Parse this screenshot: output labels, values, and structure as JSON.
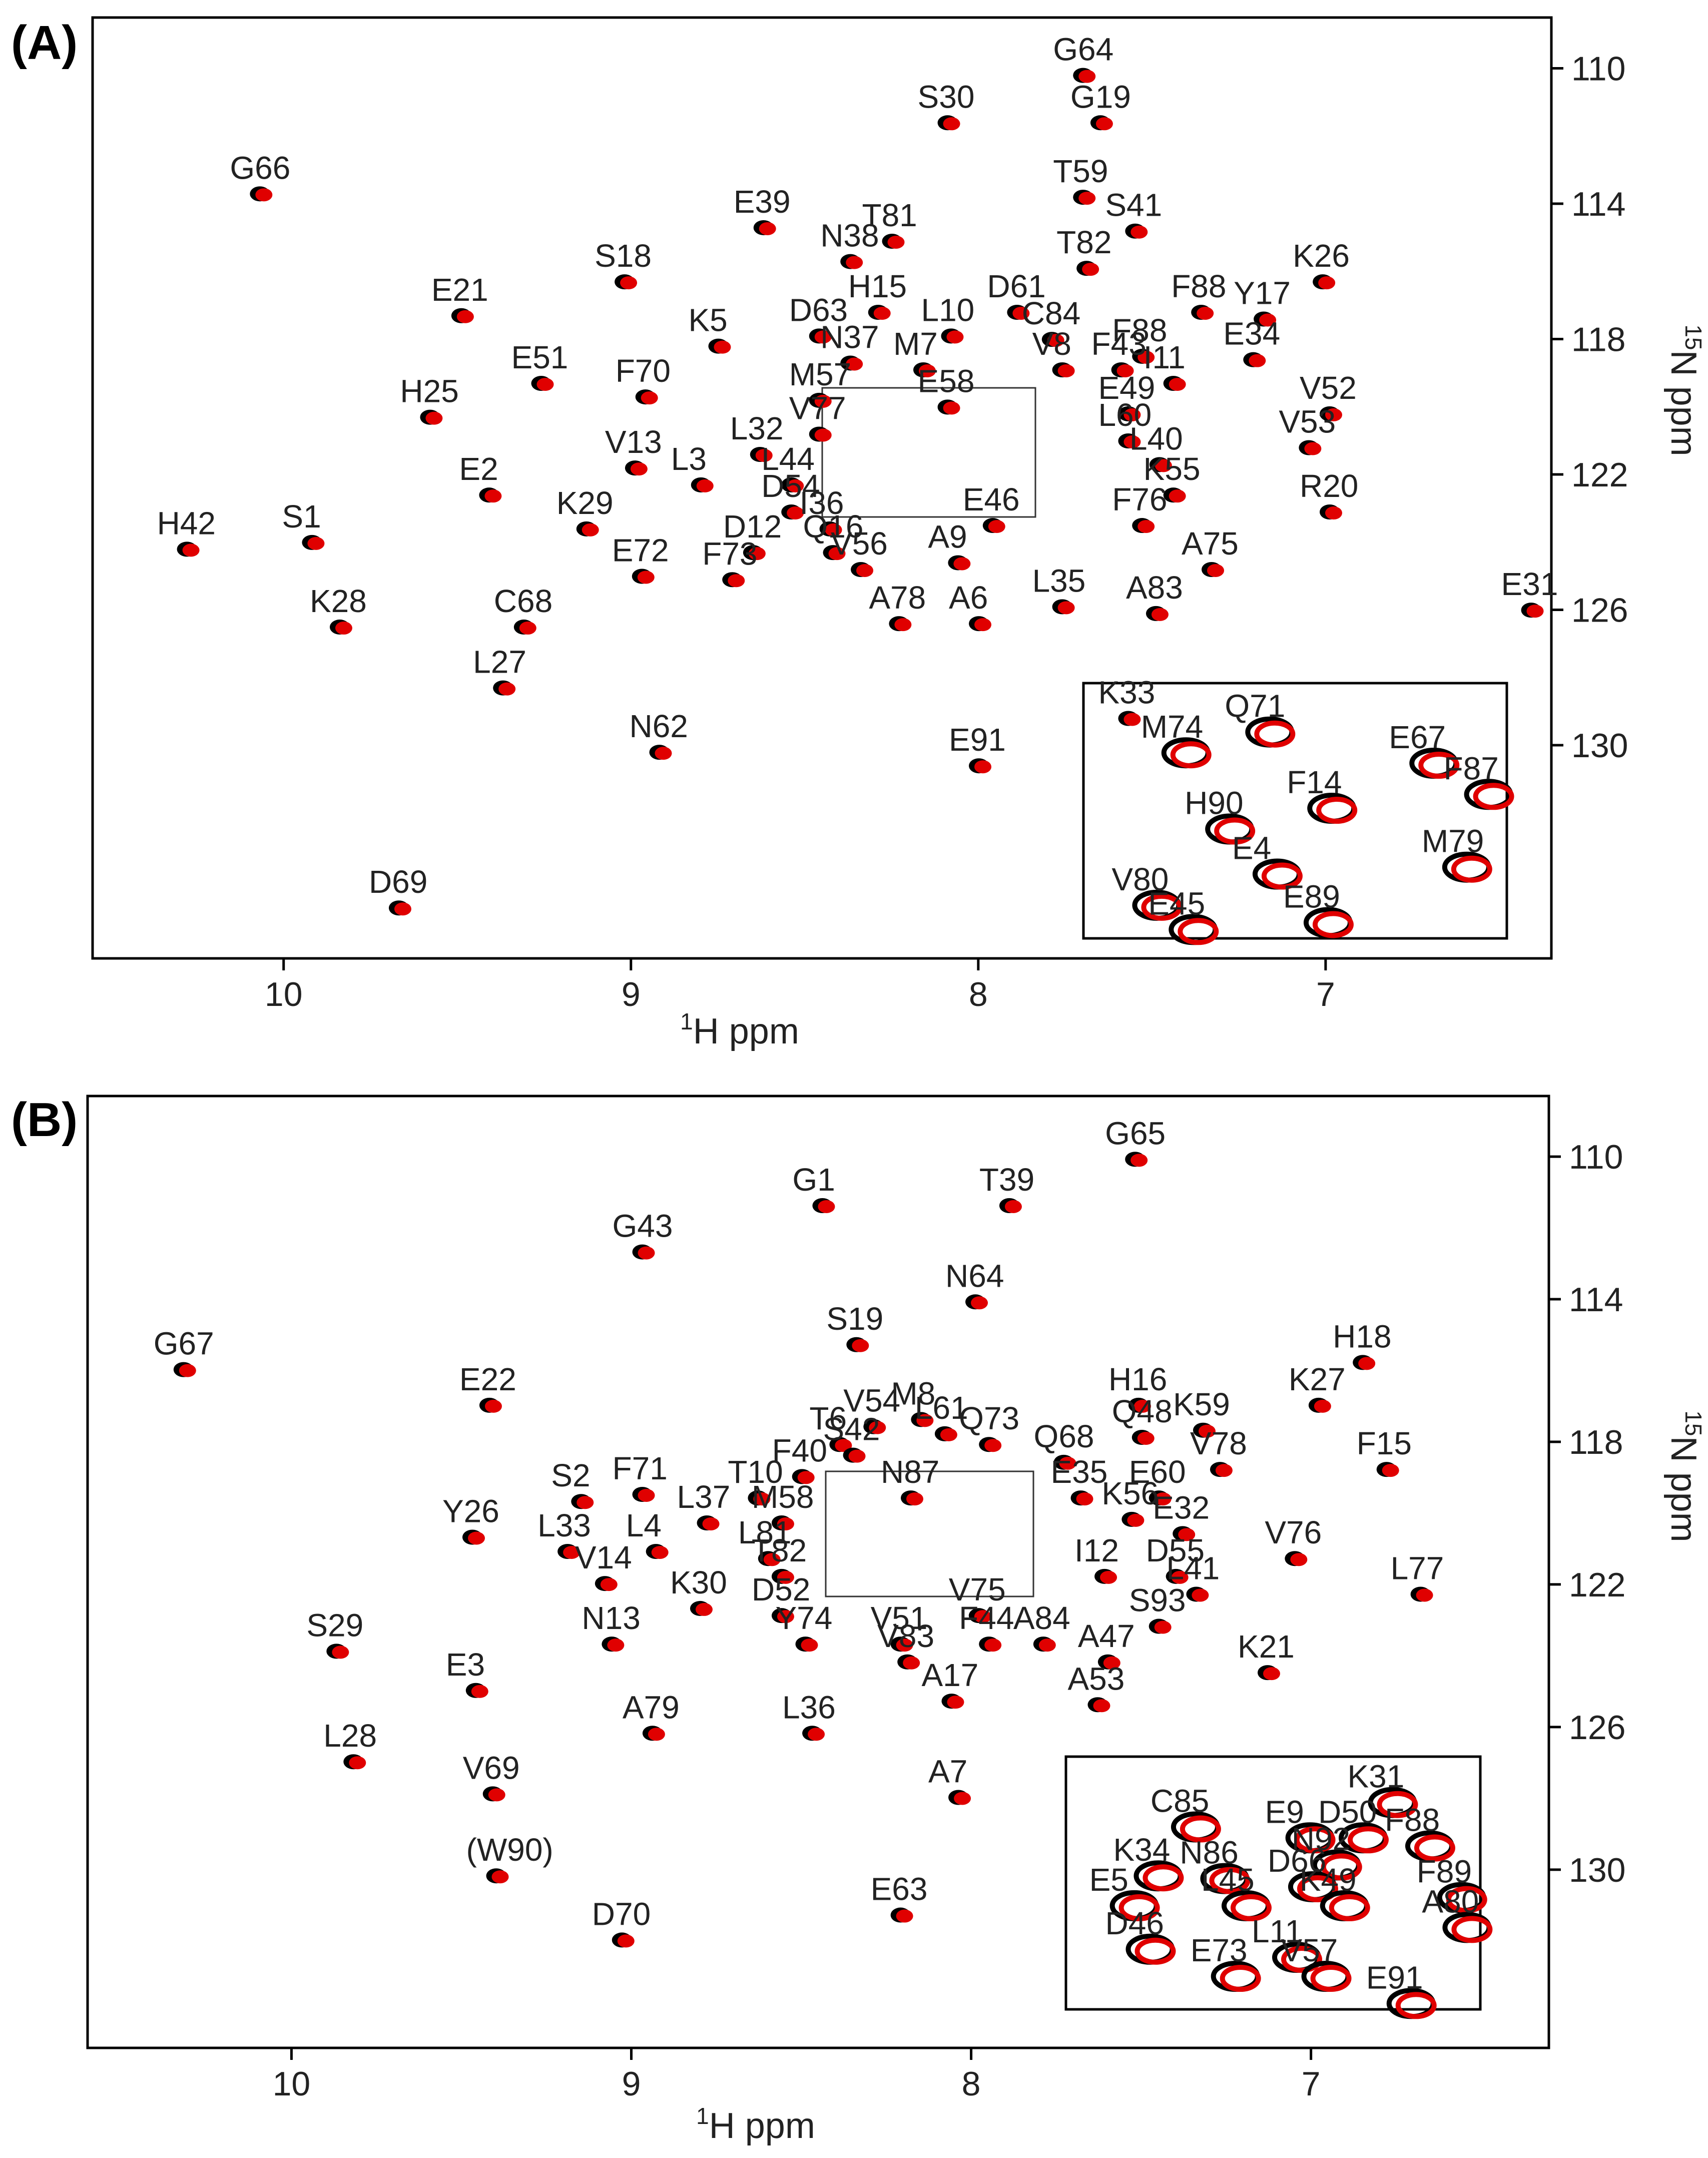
{
  "colors": {
    "peak_black": "#000000",
    "peak_red": "#e00000",
    "axis": "#000000",
    "label": "#222222"
  },
  "chart_data": [
    {
      "type": "scatter",
      "panel_label": "(A)",
      "xlabel_sup": "1",
      "xlabel_rest": "H ppm",
      "ylabel_sup": "15",
      "ylabel_rest": "N ppm",
      "xlim": [
        10.55,
        6.35
      ],
      "ylim": [
        108.5,
        136.3
      ],
      "xticks": [
        10,
        9,
        8,
        7
      ],
      "yticks": [
        110,
        114,
        118,
        122,
        126,
        130
      ],
      "labels": [
        {
          "text": "G64",
          "x": 7.73,
          "y": 109.5
        },
        {
          "text": "G19",
          "x": 7.68,
          "y": 110.9
        },
        {
          "text": "S30",
          "x": 8.12,
          "y": 110.9
        },
        {
          "text": "T59",
          "x": 7.73,
          "y": 113.1
        },
        {
          "text": "G66",
          "x": 10.1,
          "y": 113.0
        },
        {
          "text": "E39",
          "x": 8.65,
          "y": 114.0
        },
        {
          "text": "T81",
          "x": 8.28,
          "y": 114.4
        },
        {
          "text": "S41",
          "x": 7.58,
          "y": 114.1
        },
        {
          "text": "N38",
          "x": 8.4,
          "y": 115.0
        },
        {
          "text": "T82",
          "x": 7.72,
          "y": 115.2
        },
        {
          "text": "K26",
          "x": 7.04,
          "y": 115.6
        },
        {
          "text": "S18",
          "x": 9.05,
          "y": 115.6
        },
        {
          "text": "H15",
          "x": 8.32,
          "y": 116.5
        },
        {
          "text": "D61",
          "x": 7.92,
          "y": 116.5
        },
        {
          "text": "F88",
          "x": 7.39,
          "y": 116.5
        },
        {
          "text": "Y17",
          "x": 7.21,
          "y": 116.7
        },
        {
          "text": "E21",
          "x": 9.52,
          "y": 116.6
        },
        {
          "text": "L10",
          "x": 8.11,
          "y": 117.2
        },
        {
          "text": "D63",
          "x": 8.49,
          "y": 117.2
        },
        {
          "text": "C84",
          "x": 7.82,
          "y": 117.3
        },
        {
          "text": "F88",
          "x": 7.56,
          "y": 117.8
        },
        {
          "text": "N37",
          "x": 8.4,
          "y": 118.0
        },
        {
          "text": "M7",
          "x": 8.19,
          "y": 118.2
        },
        {
          "text": "V8",
          "x": 7.79,
          "y": 118.2
        },
        {
          "text": "F43",
          "x": 7.62,
          "y": 118.2
        },
        {
          "text": "E34",
          "x": 7.24,
          "y": 117.9
        },
        {
          "text": "K5",
          "x": 8.78,
          "y": 117.5
        },
        {
          "text": "I11",
          "x": 7.47,
          "y": 118.6
        },
        {
          "text": "E51",
          "x": 9.29,
          "y": 118.6
        },
        {
          "text": "F70",
          "x": 8.99,
          "y": 119.0
        },
        {
          "text": "M57",
          "x": 8.49,
          "y": 119.1
        },
        {
          "text": "E58",
          "x": 8.12,
          "y": 119.3
        },
        {
          "text": "E49",
          "x": 7.6,
          "y": 119.5
        },
        {
          "text": "V52",
          "x": 7.02,
          "y": 119.5
        },
        {
          "text": "H25",
          "x": 9.61,
          "y": 119.6
        },
        {
          "text": "V77",
          "x": 8.49,
          "y": 120.1
        },
        {
          "text": "L60",
          "x": 7.6,
          "y": 120.3
        },
        {
          "text": "V53",
          "x": 7.08,
          "y": 120.5
        },
        {
          "text": "L32",
          "x": 8.66,
          "y": 120.7
        },
        {
          "text": "L40",
          "x": 7.51,
          "y": 121.0
        },
        {
          "text": "V13",
          "x": 9.02,
          "y": 121.1
        },
        {
          "text": "L3",
          "x": 8.83,
          "y": 121.6
        },
        {
          "text": "L44",
          "x": 8.57,
          "y": 121.6
        },
        {
          "text": "E2",
          "x": 9.44,
          "y": 121.9
        },
        {
          "text": "K55",
          "x": 7.47,
          "y": 121.9
        },
        {
          "text": "D54",
          "x": 8.57,
          "y": 122.4
        },
        {
          "text": "R20",
          "x": 7.02,
          "y": 122.4
        },
        {
          "text": "E46",
          "x": 7.99,
          "y": 122.8
        },
        {
          "text": "F76",
          "x": 7.56,
          "y": 122.8
        },
        {
          "text": "I36",
          "x": 8.46,
          "y": 122.9
        },
        {
          "text": "K29",
          "x": 9.16,
          "y": 122.9
        },
        {
          "text": "H42",
          "x": 10.31,
          "y": 123.5
        },
        {
          "text": "S1",
          "x": 9.95,
          "y": 123.3
        },
        {
          "text": "D12",
          "x": 8.68,
          "y": 123.6
        },
        {
          "text": "Q16",
          "x": 8.45,
          "y": 123.6
        },
        {
          "text": "A9",
          "x": 8.09,
          "y": 123.9
        },
        {
          "text": "V56",
          "x": 8.37,
          "y": 124.1
        },
        {
          "text": "A75",
          "x": 7.36,
          "y": 124.1
        },
        {
          "text": "E72",
          "x": 9.0,
          "y": 124.3
        },
        {
          "text": "F73",
          "x": 8.74,
          "y": 124.4
        },
        {
          "text": "L35",
          "x": 7.79,
          "y": 125.2
        },
        {
          "text": "A83",
          "x": 7.52,
          "y": 125.4
        },
        {
          "text": "A78",
          "x": 8.26,
          "y": 125.7
        },
        {
          "text": "A6",
          "x": 8.03,
          "y": 125.7
        },
        {
          "text": "E31",
          "x": 6.44,
          "y": 125.3
        },
        {
          "text": "K28",
          "x": 9.87,
          "y": 125.8
        },
        {
          "text": "C68",
          "x": 9.34,
          "y": 125.8
        },
        {
          "text": "L27",
          "x": 9.4,
          "y": 127.6
        },
        {
          "text": "K33",
          "x": 7.6,
          "y": 128.5
        },
        {
          "text": "N62",
          "x": 8.95,
          "y": 129.5
        },
        {
          "text": "E91",
          "x": 8.03,
          "y": 129.9
        },
        {
          "text": "D69",
          "x": 9.7,
          "y": 134.1
        }
      ],
      "inset_labels": [
        {
          "text": "Q71",
          "x": 7.16,
          "y": 127.8
        },
        {
          "text": "M74",
          "x": 7.39,
          "y": 128.4
        },
        {
          "text": "E67",
          "x": 6.71,
          "y": 128.7
        },
        {
          "text": "F87",
          "x": 6.56,
          "y": 129.6
        },
        {
          "text": "F14",
          "x": 6.99,
          "y": 130.0
        },
        {
          "text": "H90",
          "x": 7.27,
          "y": 130.6
        },
        {
          "text": "E4",
          "x": 7.14,
          "y": 131.9
        },
        {
          "text": "M79",
          "x": 6.62,
          "y": 131.7
        },
        {
          "text": "V80",
          "x": 7.47,
          "y": 132.8
        },
        {
          "text": "E45",
          "x": 7.37,
          "y": 133.5
        },
        {
          "text": "E89",
          "x": 7.0,
          "y": 133.3
        }
      ]
    },
    {
      "type": "scatter",
      "panel_label": "(B)",
      "xlabel_sup": "1",
      "xlabel_rest": "H ppm",
      "ylabel_sup": "15",
      "ylabel_rest": "N ppm",
      "xlim": [
        10.6,
        6.3
      ],
      "ylim": [
        108.3,
        135.0
      ],
      "xticks": [
        10,
        9,
        8,
        7
      ],
      "yticks": [
        110,
        114,
        118,
        122,
        126,
        130
      ],
      "labels": [
        {
          "text": "G65",
          "x": 7.55,
          "y": 109.4
        },
        {
          "text": "G1",
          "x": 8.47,
          "y": 110.7
        },
        {
          "text": "T39",
          "x": 7.92,
          "y": 110.7
        },
        {
          "text": "G43",
          "x": 9.0,
          "y": 112.0
        },
        {
          "text": "N64",
          "x": 8.02,
          "y": 113.4
        },
        {
          "text": "G67",
          "x": 10.35,
          "y": 115.3
        },
        {
          "text": "S19",
          "x": 8.37,
          "y": 114.6
        },
        {
          "text": "H18",
          "x": 6.88,
          "y": 115.1
        },
        {
          "text": "K27",
          "x": 7.01,
          "y": 116.3
        },
        {
          "text": "E22",
          "x": 9.45,
          "y": 116.3
        },
        {
          "text": "H16",
          "x": 7.54,
          "y": 116.3
        },
        {
          "text": "M8",
          "x": 8.18,
          "y": 116.7
        },
        {
          "text": "V54",
          "x": 8.32,
          "y": 116.9
        },
        {
          "text": "L61",
          "x": 8.11,
          "y": 117.1
        },
        {
          "text": "K59",
          "x": 7.35,
          "y": 117.0
        },
        {
          "text": "T6",
          "x": 8.42,
          "y": 117.4
        },
        {
          "text": "Q73",
          "x": 7.98,
          "y": 117.4
        },
        {
          "text": "Q48",
          "x": 7.53,
          "y": 117.2
        },
        {
          "text": "S42",
          "x": 8.38,
          "y": 117.7
        },
        {
          "text": "Q68",
          "x": 7.76,
          "y": 117.9
        },
        {
          "text": "V78",
          "x": 7.3,
          "y": 118.1
        },
        {
          "text": "F15",
          "x": 6.81,
          "y": 118.1
        },
        {
          "text": "F40",
          "x": 8.53,
          "y": 118.3
        },
        {
          "text": "N87",
          "x": 8.21,
          "y": 118.9
        },
        {
          "text": "E35",
          "x": 7.71,
          "y": 118.9
        },
        {
          "text": "E60",
          "x": 7.48,
          "y": 118.9
        },
        {
          "text": "S2",
          "x": 9.18,
          "y": 119.0
        },
        {
          "text": "F71",
          "x": 9.0,
          "y": 118.8
        },
        {
          "text": "T10",
          "x": 8.66,
          "y": 118.9
        },
        {
          "text": "L37",
          "x": 8.81,
          "y": 119.6
        },
        {
          "text": "M58",
          "x": 8.59,
          "y": 119.6
        },
        {
          "text": "K56",
          "x": 7.56,
          "y": 119.5
        },
        {
          "text": "E32",
          "x": 7.41,
          "y": 119.9
        },
        {
          "text": "Y26",
          "x": 9.5,
          "y": 120.0
        },
        {
          "text": "L33",
          "x": 9.22,
          "y": 120.4
        },
        {
          "text": "L4",
          "x": 8.96,
          "y": 120.4
        },
        {
          "text": "L81",
          "x": 8.63,
          "y": 120.6
        },
        {
          "text": "V76",
          "x": 7.08,
          "y": 120.6
        },
        {
          "text": "T82",
          "x": 8.59,
          "y": 121.1
        },
        {
          "text": "I12",
          "x": 7.64,
          "y": 121.1
        },
        {
          "text": "D55",
          "x": 7.43,
          "y": 121.1
        },
        {
          "text": "V14",
          "x": 9.11,
          "y": 121.3
        },
        {
          "text": "L77",
          "x": 6.71,
          "y": 121.6
        },
        {
          "text": "L41",
          "x": 7.37,
          "y": 121.6
        },
        {
          "text": "K30",
          "x": 8.83,
          "y": 122.0
        },
        {
          "text": "D52",
          "x": 8.59,
          "y": 122.2
        },
        {
          "text": "V75",
          "x": 8.01,
          "y": 122.2
        },
        {
          "text": "S93",
          "x": 7.48,
          "y": 122.5
        },
        {
          "text": "Y74",
          "x": 8.52,
          "y": 123.0
        },
        {
          "text": "V51",
          "x": 8.24,
          "y": 123.0
        },
        {
          "text": "N13",
          "x": 9.09,
          "y": 123.0
        },
        {
          "text": "F44",
          "x": 7.98,
          "y": 123.0
        },
        {
          "text": "A84",
          "x": 7.82,
          "y": 123.0
        },
        {
          "text": "S29",
          "x": 9.9,
          "y": 123.2
        },
        {
          "text": "A47",
          "x": 7.63,
          "y": 123.5
        },
        {
          "text": "V83",
          "x": 8.22,
          "y": 123.5
        },
        {
          "text": "K21",
          "x": 7.16,
          "y": 123.8
        },
        {
          "text": "E3",
          "x": 9.49,
          "y": 124.3
        },
        {
          "text": "A17",
          "x": 8.09,
          "y": 124.6
        },
        {
          "text": "A53",
          "x": 7.66,
          "y": 124.7
        },
        {
          "text": "A79",
          "x": 8.97,
          "y": 125.5
        },
        {
          "text": "L36",
          "x": 8.5,
          "y": 125.5
        },
        {
          "text": "L28",
          "x": 9.85,
          "y": 126.3
        },
        {
          "text": "V69",
          "x": 9.44,
          "y": 127.2
        },
        {
          "text": "A7",
          "x": 8.07,
          "y": 127.3
        },
        {
          "text": "(W90)",
          "x": 9.43,
          "y": 129.5
        },
        {
          "text": "E63",
          "x": 8.24,
          "y": 130.6
        },
        {
          "text": "D70",
          "x": 9.06,
          "y": 131.3
        }
      ],
      "inset_labels": [
        {
          "text": "K31",
          "x": 6.74,
          "y": 125.9
        },
        {
          "text": "C85",
          "x": 7.48,
          "y": 126.8
        },
        {
          "text": "E9",
          "x": 7.05,
          "y": 127.2
        },
        {
          "text": "D50",
          "x": 6.85,
          "y": 127.2
        },
        {
          "text": "N92",
          "x": 6.95,
          "y": 128.2
        },
        {
          "text": "F88",
          "x": 6.6,
          "y": 127.5
        },
        {
          "text": "K34",
          "x": 7.62,
          "y": 128.6
        },
        {
          "text": "N86",
          "x": 7.37,
          "y": 128.7
        },
        {
          "text": "D66",
          "x": 7.04,
          "y": 129.0
        },
        {
          "text": "F89",
          "x": 6.48,
          "y": 129.4
        },
        {
          "text": "E5",
          "x": 7.71,
          "y": 129.7
        },
        {
          "text": "L45",
          "x": 7.29,
          "y": 129.7
        },
        {
          "text": "K49",
          "x": 6.92,
          "y": 129.7
        },
        {
          "text": "A80",
          "x": 6.46,
          "y": 130.5
        },
        {
          "text": "D46",
          "x": 7.65,
          "y": 131.3
        },
        {
          "text": "L11",
          "x": 7.1,
          "y": 131.6
        },
        {
          "text": "E73",
          "x": 7.33,
          "y": 132.3
        },
        {
          "text": "V57",
          "x": 6.99,
          "y": 132.3
        },
        {
          "text": "E91",
          "x": 6.67,
          "y": 133.3
        }
      ]
    }
  ]
}
